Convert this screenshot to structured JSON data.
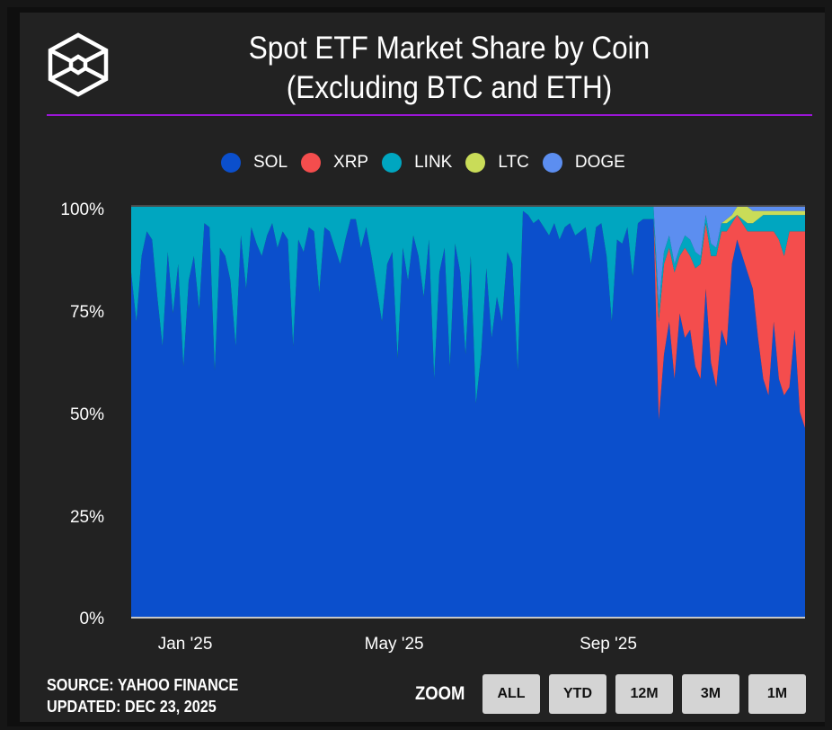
{
  "header": {
    "title_line1": "Spot ETF Market Share by Coin",
    "title_line2": "(Excluding BTC and ETH)",
    "logo_icon": "cube-logo-icon"
  },
  "footer": {
    "source": "SOURCE: YAHOO FINANCE",
    "updated": "UPDATED: DEC 23, 2025",
    "zoom_label": "ZOOM",
    "zoom_buttons": [
      "ALL",
      "YTD",
      "12M",
      "3M",
      "1M"
    ]
  },
  "colors": {
    "SOL": "#0b4fcc",
    "XRP": "#f44d4d",
    "LINK": "#00a6c0",
    "LTC": "#c9dc58",
    "DOGE": "#5c8ef0",
    "accent_rule": "#9b16d6",
    "background": "#222222"
  },
  "chart_data": {
    "type": "area",
    "stacked": "percent",
    "title": "Spot ETF Market Share by Coin (Excluding BTC and ETH)",
    "xlabel": "",
    "ylabel": "",
    "ylim": [
      0,
      100
    ],
    "yticks": [
      "0%",
      "25%",
      "50%",
      "75%",
      "100%"
    ],
    "xticks": [
      {
        "label": "Jan '25",
        "date": "2025-01-01"
      },
      {
        "label": "May '25",
        "date": "2025-05-01"
      },
      {
        "label": "Sep '25",
        "date": "2025-09-01"
      }
    ],
    "x_range": [
      "2024-12-01",
      "2025-12-23"
    ],
    "legend": [
      "SOL",
      "XRP",
      "LINK",
      "LTC",
      "DOGE"
    ],
    "legend_position": "top",
    "grid": false,
    "start_date": "2024-12-01",
    "step_days": 3,
    "series": [
      {
        "name": "SOL",
        "values": [
          84,
          72,
          88,
          94,
          92,
          78,
          66,
          89,
          74,
          86,
          61,
          82,
          88,
          75,
          96,
          95,
          60,
          90,
          88,
          82,
          66,
          93,
          80,
          95,
          91,
          88,
          93,
          96,
          90,
          94,
          92,
          66,
          92,
          89,
          95,
          94,
          79,
          95,
          94,
          90,
          86,
          92,
          97,
          97,
          90,
          95,
          88,
          80,
          72,
          86,
          89,
          63,
          90,
          82,
          93,
          88,
          78,
          92,
          58,
          84,
          90,
          61,
          91,
          84,
          64,
          88,
          52,
          64,
          85,
          68,
          78,
          72,
          89,
          86,
          60,
          99,
          98,
          96,
          97,
          95,
          93,
          96,
          92,
          95,
          96,
          93,
          94,
          95,
          86,
          95,
          96,
          88,
          72,
          92,
          91,
          95,
          83,
          96,
          97,
          97,
          97,
          48,
          64,
          72,
          58,
          74,
          68,
          70,
          61,
          58,
          80,
          62,
          56,
          70,
          66,
          86,
          92,
          88,
          84,
          80,
          68,
          58,
          54,
          72,
          58,
          54,
          56,
          70,
          50,
          46
        ]
      },
      {
        "name": "XRP",
        "values": [
          0,
          0,
          0,
          0,
          0,
          0,
          0,
          0,
          0,
          0,
          0,
          0,
          0,
          0,
          0,
          0,
          0,
          0,
          0,
          0,
          0,
          0,
          0,
          0,
          0,
          0,
          0,
          0,
          0,
          0,
          0,
          0,
          0,
          0,
          0,
          0,
          0,
          0,
          0,
          0,
          0,
          0,
          0,
          0,
          0,
          0,
          0,
          0,
          0,
          0,
          0,
          0,
          0,
          0,
          0,
          0,
          0,
          0,
          0,
          0,
          0,
          0,
          0,
          0,
          0,
          0,
          0,
          0,
          0,
          0,
          0,
          0,
          0,
          0,
          0,
          0,
          0,
          0,
          0,
          0,
          0,
          0,
          0,
          0,
          0,
          0,
          0,
          0,
          0,
          0,
          0,
          0,
          0,
          0,
          0,
          0,
          0,
          0,
          0,
          0,
          0,
          24,
          22,
          18,
          26,
          14,
          22,
          18,
          24,
          28,
          16,
          26,
          32,
          24,
          28,
          10,
          6,
          8,
          10,
          14,
          26,
          36,
          40,
          22,
          34,
          34,
          38,
          24,
          44,
          48
        ]
      },
      {
        "name": "LINK",
        "values": [
          16,
          28,
          12,
          6,
          8,
          22,
          34,
          11,
          26,
          14,
          39,
          18,
          12,
          25,
          4,
          5,
          40,
          10,
          12,
          18,
          34,
          7,
          20,
          5,
          9,
          12,
          7,
          4,
          10,
          6,
          8,
          34,
          8,
          11,
          5,
          6,
          21,
          5,
          6,
          10,
          14,
          8,
          3,
          3,
          10,
          5,
          12,
          20,
          28,
          14,
          11,
          37,
          10,
          18,
          7,
          12,
          22,
          8,
          42,
          16,
          10,
          39,
          9,
          16,
          36,
          12,
          48,
          36,
          15,
          32,
          22,
          28,
          11,
          14,
          40,
          1,
          2,
          4,
          3,
          5,
          7,
          4,
          8,
          5,
          4,
          7,
          6,
          5,
          14,
          5,
          4,
          12,
          28,
          8,
          9,
          5,
          17,
          4,
          3,
          3,
          3,
          4,
          3,
          3,
          2,
          2,
          3,
          4,
          4,
          2,
          2,
          3,
          2,
          2,
          2,
          1,
          0,
          1,
          2,
          2,
          3,
          4,
          4,
          4,
          6,
          10,
          4,
          4,
          4,
          4
        ]
      },
      {
        "name": "LTC",
        "values": [
          0,
          0,
          0,
          0,
          0,
          0,
          0,
          0,
          0,
          0,
          0,
          0,
          0,
          0,
          0,
          0,
          0,
          0,
          0,
          0,
          0,
          0,
          0,
          0,
          0,
          0,
          0,
          0,
          0,
          0,
          0,
          0,
          0,
          0,
          0,
          0,
          0,
          0,
          0,
          0,
          0,
          0,
          0,
          0,
          0,
          0,
          0,
          0,
          0,
          0,
          0,
          0,
          0,
          0,
          0,
          0,
          0,
          0,
          0,
          0,
          0,
          0,
          0,
          0,
          0,
          0,
          0,
          0,
          0,
          0,
          0,
          0,
          0,
          0,
          0,
          0,
          0,
          0,
          0,
          0,
          0,
          0,
          0,
          0,
          0,
          0,
          0,
          0,
          0,
          0,
          0,
          0,
          0,
          0,
          0,
          0,
          0,
          0,
          0,
          0,
          0,
          0,
          0,
          0,
          0,
          0,
          0,
          0,
          0,
          0,
          0,
          0,
          0,
          0,
          1,
          1,
          2,
          3,
          4,
          3,
          2,
          1,
          1,
          1,
          1,
          1,
          1,
          1,
          1,
          1
        ]
      },
      {
        "name": "DOGE",
        "values": [
          0,
          0,
          0,
          0,
          0,
          0,
          0,
          0,
          0,
          0,
          0,
          0,
          0,
          0,
          0,
          0,
          0,
          0,
          0,
          0,
          0,
          0,
          0,
          0,
          0,
          0,
          0,
          0,
          0,
          0,
          0,
          0,
          0,
          0,
          0,
          0,
          0,
          0,
          0,
          0,
          0,
          0,
          0,
          0,
          0,
          0,
          0,
          0,
          0,
          0,
          0,
          0,
          0,
          0,
          0,
          0,
          0,
          0,
          0,
          0,
          0,
          0,
          0,
          0,
          0,
          0,
          0,
          0,
          0,
          0,
          0,
          0,
          0,
          0,
          0,
          0,
          0,
          0,
          0,
          0,
          0,
          0,
          0,
          0,
          0,
          0,
          0,
          0,
          0,
          0,
          0,
          0,
          0,
          0,
          0,
          0,
          0,
          0,
          0,
          0,
          0,
          24,
          11,
          7,
          14,
          10,
          7,
          8,
          11,
          12,
          2,
          9,
          10,
          4,
          4,
          2,
          1,
          1,
          2,
          1,
          1,
          1,
          1,
          1,
          1,
          1,
          1,
          1,
          1,
          1
        ]
      }
    ]
  }
}
